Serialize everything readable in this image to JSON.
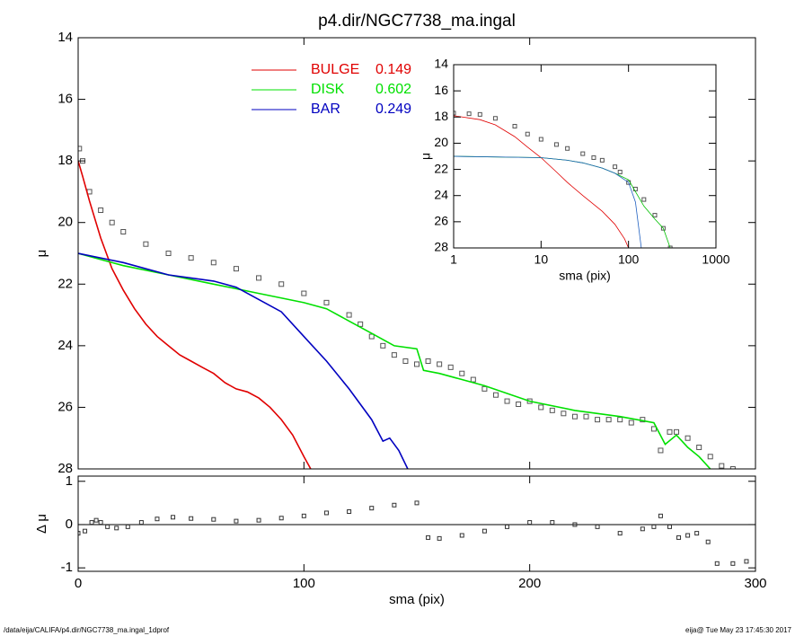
{
  "chart_data": [
    {
      "type": "line",
      "title": "p4.dir/NGC7738_ma.ingal",
      "ylabel": "μ",
      "xlim": [
        0,
        300
      ],
      "xticks": [
        0,
        100,
        200,
        300
      ],
      "ylim": [
        28,
        14
      ],
      "yticks": [
        14,
        16,
        18,
        20,
        22,
        24,
        26,
        28
      ],
      "series": [
        {
          "style": "squares",
          "color": "#555555",
          "x": [
            0.5,
            2,
            5,
            10,
            15,
            20,
            30,
            40,
            50,
            60,
            70,
            80,
            90,
            100,
            110,
            120,
            125,
            130,
            135,
            140,
            145,
            150,
            155,
            160,
            165,
            170,
            175,
            180,
            185,
            190,
            195,
            200,
            205,
            210,
            215,
            220,
            225,
            230,
            235,
            240,
            245,
            250,
            255,
            258,
            262,
            265,
            270,
            275,
            280,
            285,
            290
          ],
          "values": [
            17.6,
            18.0,
            19.0,
            19.6,
            20.0,
            20.3,
            20.7,
            21.0,
            21.15,
            21.3,
            21.5,
            21.8,
            22.0,
            22.3,
            22.6,
            23.0,
            23.3,
            23.7,
            24.0,
            24.3,
            24.5,
            24.6,
            24.5,
            24.6,
            24.7,
            24.9,
            25.1,
            25.4,
            25.6,
            25.8,
            25.9,
            25.8,
            26.0,
            26.1,
            26.2,
            26.3,
            26.3,
            26.4,
            26.4,
            26.4,
            26.5,
            26.4,
            26.7,
            27.4,
            26.8,
            26.8,
            27.0,
            27.3,
            27.6,
            27.9,
            28.0
          ]
        },
        {
          "name": "BULGE",
          "fraction": 0.149,
          "style": "line",
          "color": "#e00000",
          "x": [
            0,
            2,
            5,
            10,
            15,
            20,
            25,
            30,
            35,
            40,
            45,
            50,
            55,
            60,
            65,
            70,
            75,
            80,
            85,
            90,
            95,
            100,
            103
          ],
          "values": [
            18.0,
            18.5,
            19.3,
            20.5,
            21.5,
            22.2,
            22.8,
            23.3,
            23.7,
            24.0,
            24.3,
            24.5,
            24.7,
            24.9,
            25.2,
            25.4,
            25.5,
            25.7,
            26.0,
            26.4,
            26.9,
            27.6,
            28.0
          ]
        },
        {
          "name": "DISK",
          "fraction": 0.602,
          "style": "line",
          "color": "#00e000",
          "x": [
            0,
            20,
            40,
            60,
            80,
            100,
            110,
            120,
            130,
            140,
            150,
            153,
            160,
            180,
            200,
            220,
            240,
            255,
            260,
            265,
            270,
            275,
            280
          ],
          "values": [
            21.0,
            21.4,
            21.7,
            22.0,
            22.3,
            22.6,
            22.8,
            23.2,
            23.6,
            24.0,
            24.1,
            24.8,
            24.9,
            25.3,
            25.8,
            26.1,
            26.3,
            26.5,
            27.2,
            26.9,
            27.3,
            27.6,
            28.0
          ]
        },
        {
          "name": "BAR",
          "fraction": 0.249,
          "style": "line",
          "color": "#0000c0",
          "x": [
            0,
            20,
            40,
            60,
            70,
            80,
            90,
            100,
            110,
            120,
            130,
            135,
            138,
            142,
            146
          ],
          "values": [
            21.0,
            21.3,
            21.7,
            21.9,
            22.1,
            22.5,
            22.9,
            23.7,
            24.5,
            25.4,
            26.4,
            27.1,
            27.0,
            27.4,
            28.0
          ]
        }
      ]
    },
    {
      "type": "scatter",
      "xlabel": "sma (pix)",
      "ylabel": "Δ μ",
      "hline": 0,
      "xlim": [
        0,
        300
      ],
      "xticks": [
        0,
        100,
        200,
        300
      ],
      "ylim": [
        -1.08,
        1.12
      ],
      "yticks": [
        -1,
        0,
        1
      ],
      "color": "#333333",
      "x": [
        0,
        3,
        6,
        8,
        10,
        13,
        17,
        22,
        28,
        35,
        42,
        50,
        60,
        70,
        80,
        90,
        100,
        110,
        120,
        130,
        140,
        150,
        155,
        160,
        170,
        180,
        190,
        200,
        210,
        220,
        230,
        240,
        250,
        255,
        258,
        262,
        266,
        270,
        274,
        279,
        283,
        290,
        296
      ],
      "values": [
        -0.2,
        -0.15,
        0.05,
        0.1,
        0.05,
        -0.05,
        -0.08,
        -0.05,
        0.05,
        0.13,
        0.17,
        0.14,
        0.12,
        0.08,
        0.1,
        0.15,
        0.2,
        0.27,
        0.3,
        0.38,
        0.45,
        0.5,
        -0.3,
        -0.32,
        -0.25,
        -0.15,
        -0.05,
        0.05,
        0.05,
        0.0,
        -0.05,
        -0.2,
        -0.1,
        -0.05,
        0.2,
        -0.05,
        -0.3,
        -0.25,
        -0.2,
        -0.4,
        -0.9,
        -0.9,
        -0.85
      ]
    },
    {
      "type": "line",
      "xlabel": "sma (pix)",
      "ylabel": "μ",
      "xscale": "log",
      "xlim": [
        1,
        1000
      ],
      "xticks": [
        1,
        10,
        100,
        1000
      ],
      "ylim": [
        28,
        14
      ],
      "yticks": [
        14,
        16,
        18,
        20,
        22,
        24,
        26,
        28
      ],
      "series": [
        {
          "style": "squares",
          "color": "#555555",
          "x": [
            1,
            1.5,
            2,
            3,
            5,
            7,
            10,
            15,
            20,
            30,
            40,
            50,
            70,
            80,
            100,
            120,
            150,
            200,
            250,
            300
          ],
          "values": [
            17.7,
            17.75,
            17.8,
            18.1,
            18.7,
            19.3,
            19.7,
            20.1,
            20.4,
            20.8,
            21.1,
            21.3,
            21.8,
            22.2,
            23.0,
            23.5,
            24.3,
            25.5,
            26.5,
            28.0
          ]
        },
        {
          "style": "line",
          "color": "#e00000",
          "x": [
            1,
            2,
            3,
            5,
            7,
            10,
            15,
            20,
            30,
            50,
            70,
            90,
            100
          ],
          "values": [
            17.9,
            18.2,
            18.6,
            19.5,
            20.3,
            21.1,
            22.2,
            23.0,
            24.0,
            25.2,
            26.2,
            27.3,
            28.0
          ]
        },
        {
          "style": "line",
          "color": "#00c000",
          "x": [
            1,
            10,
            20,
            30,
            50,
            70,
            100,
            150,
            200,
            250,
            300
          ],
          "values": [
            21.0,
            21.1,
            21.3,
            21.5,
            21.9,
            22.3,
            22.8,
            24.8,
            25.8,
            26.5,
            28.0
          ]
        },
        {
          "style": "line",
          "color": "#2060c0",
          "x": [
            1,
            10,
            20,
            30,
            50,
            70,
            100,
            120,
            140
          ],
          "values": [
            21.0,
            21.1,
            21.3,
            21.5,
            21.9,
            22.3,
            23.0,
            24.5,
            28.0
          ]
        }
      ]
    }
  ],
  "footer": {
    "left": "/data/eija/CALIFA/p4.dir/NGC7738_ma.ingal_1dprof",
    "right": "eija@  Tue May 23 17:45:30 2017"
  }
}
